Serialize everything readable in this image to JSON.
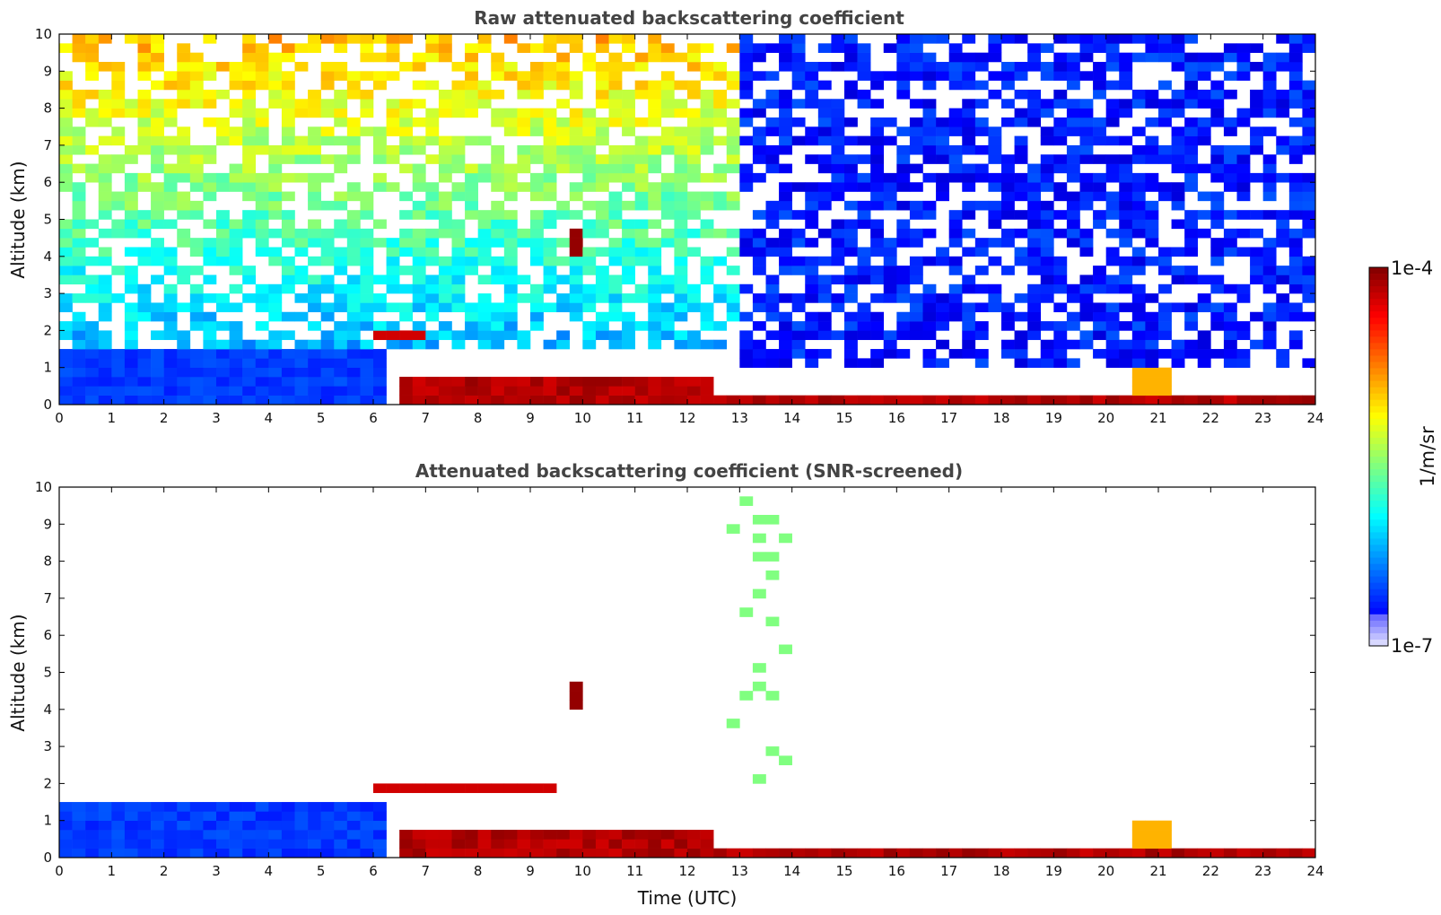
{
  "chart_data": [
    {
      "type": "heatmap",
      "title": "Raw attenuated backscattering coefficient",
      "xlabel": "",
      "ylabel": "Altitude (km)",
      "xlim": [
        0,
        24
      ],
      "ylim": [
        0,
        10
      ],
      "xticks": [
        "0",
        "1",
        "2",
        "3",
        "4",
        "5",
        "6",
        "7",
        "8",
        "9",
        "10",
        "11",
        "12",
        "13",
        "14",
        "15",
        "16",
        "17",
        "18",
        "19",
        "20",
        "21",
        "22",
        "23",
        "24"
      ],
      "yticks": [
        "0",
        "1",
        "2",
        "3",
        "4",
        "5",
        "6",
        "7",
        "8",
        "9",
        "10"
      ],
      "grid": false,
      "features": [
        {
          "kind": "boundary-layer-aerosol",
          "x": [
            0,
            6.2
          ],
          "y_top": 1.6,
          "level": 0.18
        },
        {
          "kind": "boundary-layer-top",
          "x": [
            6.5,
            12.5
          ],
          "y_top": 0.75,
          "level": 0.95
        },
        {
          "kind": "surface-layer",
          "x": [
            12.5,
            24
          ],
          "y_top": 0.25,
          "level": 0.95
        },
        {
          "kind": "elevated-aerosol-layer",
          "x": [
            5.9,
            7.0
          ],
          "y": [
            1.75,
            1.95
          ],
          "level": 0.92
        },
        {
          "kind": "cloud",
          "x": [
            9.65,
            10.05
          ],
          "y": [
            4.0,
            4.7
          ],
          "level": 0.98
        },
        {
          "kind": "cloud",
          "x": [
            20.5,
            21.2
          ],
          "y": [
            0.2,
            1.0
          ],
          "level": 0.7
        },
        {
          "kind": "background-noise",
          "x": [
            0,
            13
          ],
          "y": [
            1.6,
            10
          ],
          "level": [
            0.3,
            0.7
          ]
        },
        {
          "kind": "background-noise",
          "x": [
            13,
            24
          ],
          "y": [
            1.0,
            10
          ],
          "level": 0.15
        }
      ]
    },
    {
      "type": "heatmap",
      "title": "Attenuated backscattering coefficient (SNR-screened)",
      "xlabel": "Time (UTC)",
      "ylabel": "Altitude (km)",
      "xlim": [
        0,
        24
      ],
      "ylim": [
        0,
        10
      ],
      "xticks": [
        "0",
        "1",
        "2",
        "3",
        "4",
        "5",
        "6",
        "7",
        "8",
        "9",
        "10",
        "11",
        "12",
        "13",
        "14",
        "15",
        "16",
        "17",
        "18",
        "19",
        "20",
        "21",
        "22",
        "23",
        "24"
      ],
      "yticks": [
        "0",
        "1",
        "2",
        "3",
        "4",
        "5",
        "6",
        "7",
        "8",
        "9",
        "10"
      ],
      "grid": false,
      "features": [
        {
          "kind": "boundary-layer-aerosol",
          "x": [
            0,
            6.2
          ],
          "y_top": 1.6,
          "level": 0.18
        },
        {
          "kind": "boundary-layer-top",
          "x": [
            6.5,
            12.5
          ],
          "y_top": 0.8,
          "level": 0.95
        },
        {
          "kind": "surface-layer",
          "x": [
            12.5,
            24
          ],
          "y_top": 0.25,
          "level": 0.95
        },
        {
          "kind": "elevated-aerosol-layer",
          "x": [
            5.9,
            9.5
          ],
          "y": [
            1.7,
            1.95
          ],
          "level": 0.92
        },
        {
          "kind": "cloud",
          "x": [
            9.65,
            10.05
          ],
          "y": [
            4.0,
            4.7
          ],
          "level": 0.98
        },
        {
          "kind": "cloud",
          "x": [
            20.5,
            21.2
          ],
          "y": [
            0.2,
            1.0
          ],
          "level": 0.7
        },
        {
          "kind": "sparse-returns",
          "x": [
            12.8,
            13.9
          ],
          "y": [
            1.7,
            9.7
          ],
          "level": 0.5
        }
      ]
    }
  ],
  "colorbar": {
    "max_label": "1e-4",
    "min_label": "1e-7",
    "unit_label": "1/m/sr",
    "scale": "log"
  },
  "colors": {
    "background": "#ffffff",
    "low": "#0000ff",
    "high": "#800000"
  }
}
